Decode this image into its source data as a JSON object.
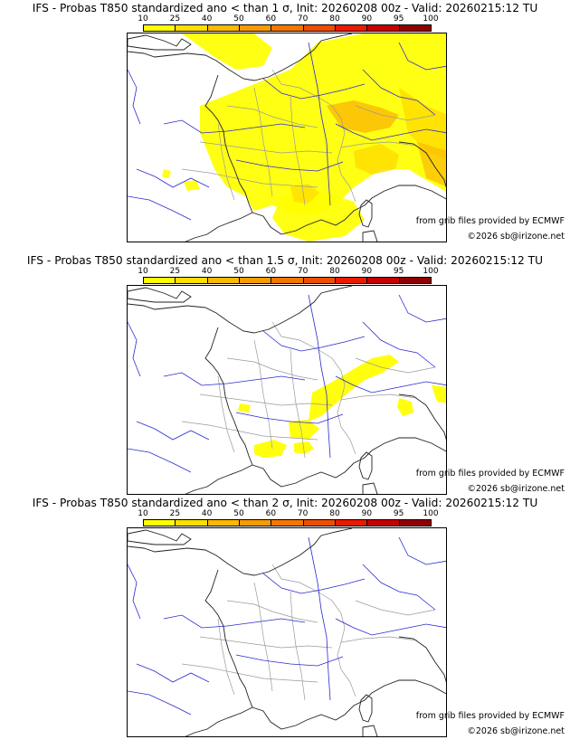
{
  "legend": {
    "ticks": [
      "10",
      "25",
      "40",
      "50",
      "60",
      "70",
      "80",
      "90",
      "95",
      "100"
    ],
    "colors": [
      "#ffff00",
      "#ffde00",
      "#fbb904",
      "#f79b00",
      "#f27600",
      "#ee4e00",
      "#ea1a00",
      "#c40000",
      "#910000",
      "#5b0000"
    ]
  },
  "panels": [
    {
      "title": "IFS - Probas T850  standardized ano < than 1 σ, Init: 20260208 00z - Valid: 20260215:12 TU",
      "credit_source": "from grib files provided by ECMWF",
      "credit_copyright": "©2026 sb@irizone.net",
      "coverage": "high"
    },
    {
      "title": "IFS - Probas T850  standardized ano < than 1.5 σ, Init: 20260208 00z - Valid: 20260215:12 TU",
      "credit_source": "from grib files provided by ECMWF",
      "credit_copyright": "©2026 sb@irizone.net",
      "coverage": "low"
    },
    {
      "title": "IFS - Probas T850  standardized ano < than 2 σ, Init: 20260208 00z - Valid: 20260215:12 TU",
      "credit_source": "from grib files provided by ECMWF",
      "credit_copyright": "©2026 sb@irizone.net",
      "coverage": "none"
    }
  ]
}
